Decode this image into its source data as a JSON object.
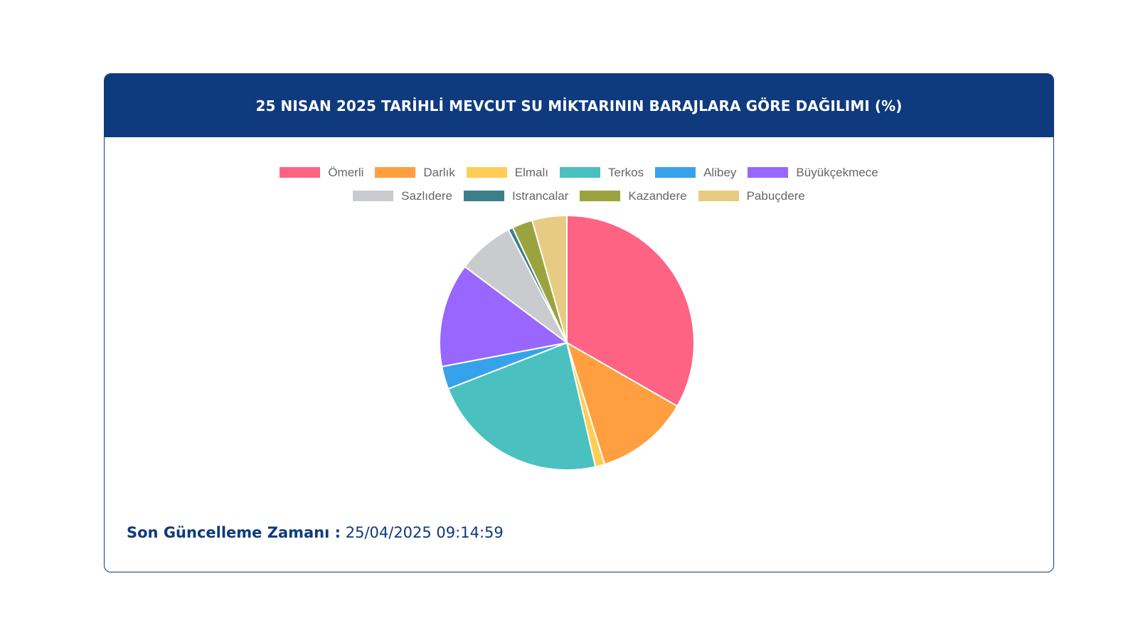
{
  "card": {
    "title": "25 NISAN 2025 TARİHLİ MEVCUT SU MİKTARININ BARAJLARA GÖRE DAĞILIMI (%)"
  },
  "footer": {
    "label": "Son Güncelleme Zamanı :",
    "timestamp": "25/04/2025 09:14:59"
  },
  "chart_data": {
    "type": "pie",
    "title": "25 NISAN 2025 TARİHLİ MEVCUT SU MİKTARININ BARAJLARA GÖRE DAĞILIMI (%)",
    "legend_position": "top",
    "categories": [
      "Ömerli",
      "Darlık",
      "Elmalı",
      "Terkos",
      "Alibey",
      "Büyükçekmece",
      "Sazlıdere",
      "Istrancalar",
      "Kazandere",
      "Pabuçdere"
    ],
    "values": [
      33.3,
      11.9,
      1.2,
      22.7,
      2.9,
      13.2,
      7.2,
      0.6,
      2.6,
      4.4
    ],
    "colors": [
      "#ff6384",
      "#ff9f40",
      "#ffcd56",
      "#4bc0c0",
      "#36a2eb",
      "#9966ff",
      "#c9cbcf",
      "#3d7f89",
      "#9ba33f",
      "#e8cb82"
    ]
  }
}
